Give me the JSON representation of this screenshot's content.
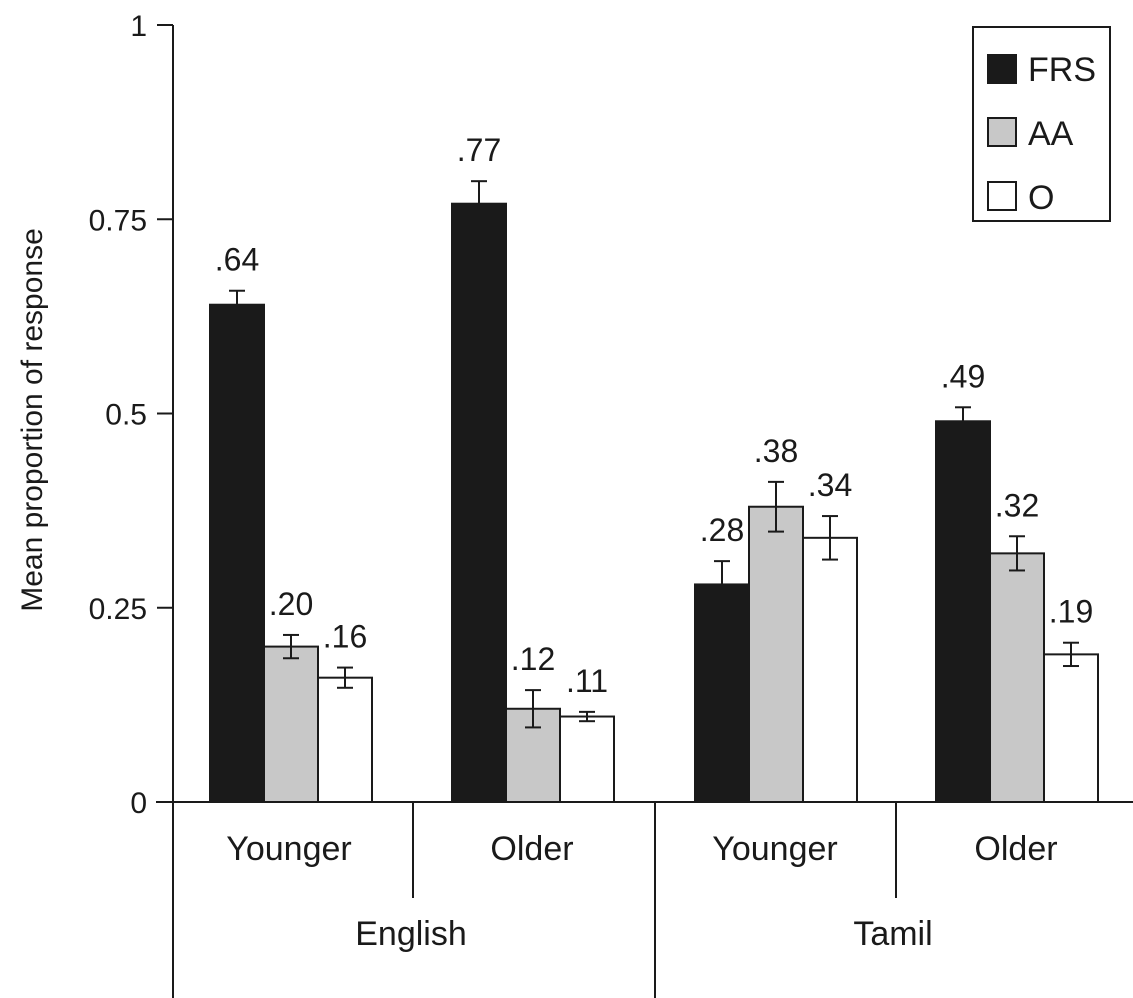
{
  "chart_data": {
    "type": "bar",
    "ylabel": "Mean proportion of response",
    "xlabel": "",
    "ylim": [
      0,
      1
    ],
    "yticks": [
      "0",
      "0.25",
      "0.5",
      "0.75",
      "1"
    ],
    "groups": [
      "English",
      "Tamil"
    ],
    "categories": [
      "Younger",
      "Older",
      "Younger",
      "Older"
    ],
    "series": [
      {
        "name": "FRS",
        "color": "#1a1a1a",
        "values": [
          0.64,
          0.77,
          0.28,
          0.49
        ],
        "labels": [
          ".64",
          ".77",
          ".28",
          ".49"
        ],
        "errors": [
          0.018,
          0.029,
          0.03,
          0.018
        ]
      },
      {
        "name": "AA",
        "color": "#c8c8c8",
        "values": [
          0.2,
          0.12,
          0.38,
          0.32
        ],
        "labels": [
          ".20",
          ".12",
          ".38",
          ".32"
        ],
        "errors": [
          0.015,
          0.024,
          0.032,
          0.022
        ]
      },
      {
        "name": "O",
        "color": "#ffffff",
        "values": [
          0.16,
          0.11,
          0.34,
          0.19
        ],
        "labels": [
          ".16",
          ".11",
          ".34",
          ".19"
        ],
        "errors": [
          0.013,
          0.006,
          0.028,
          0.015
        ]
      }
    ],
    "legend": {
      "position": "top-right"
    },
    "grid": false
  }
}
